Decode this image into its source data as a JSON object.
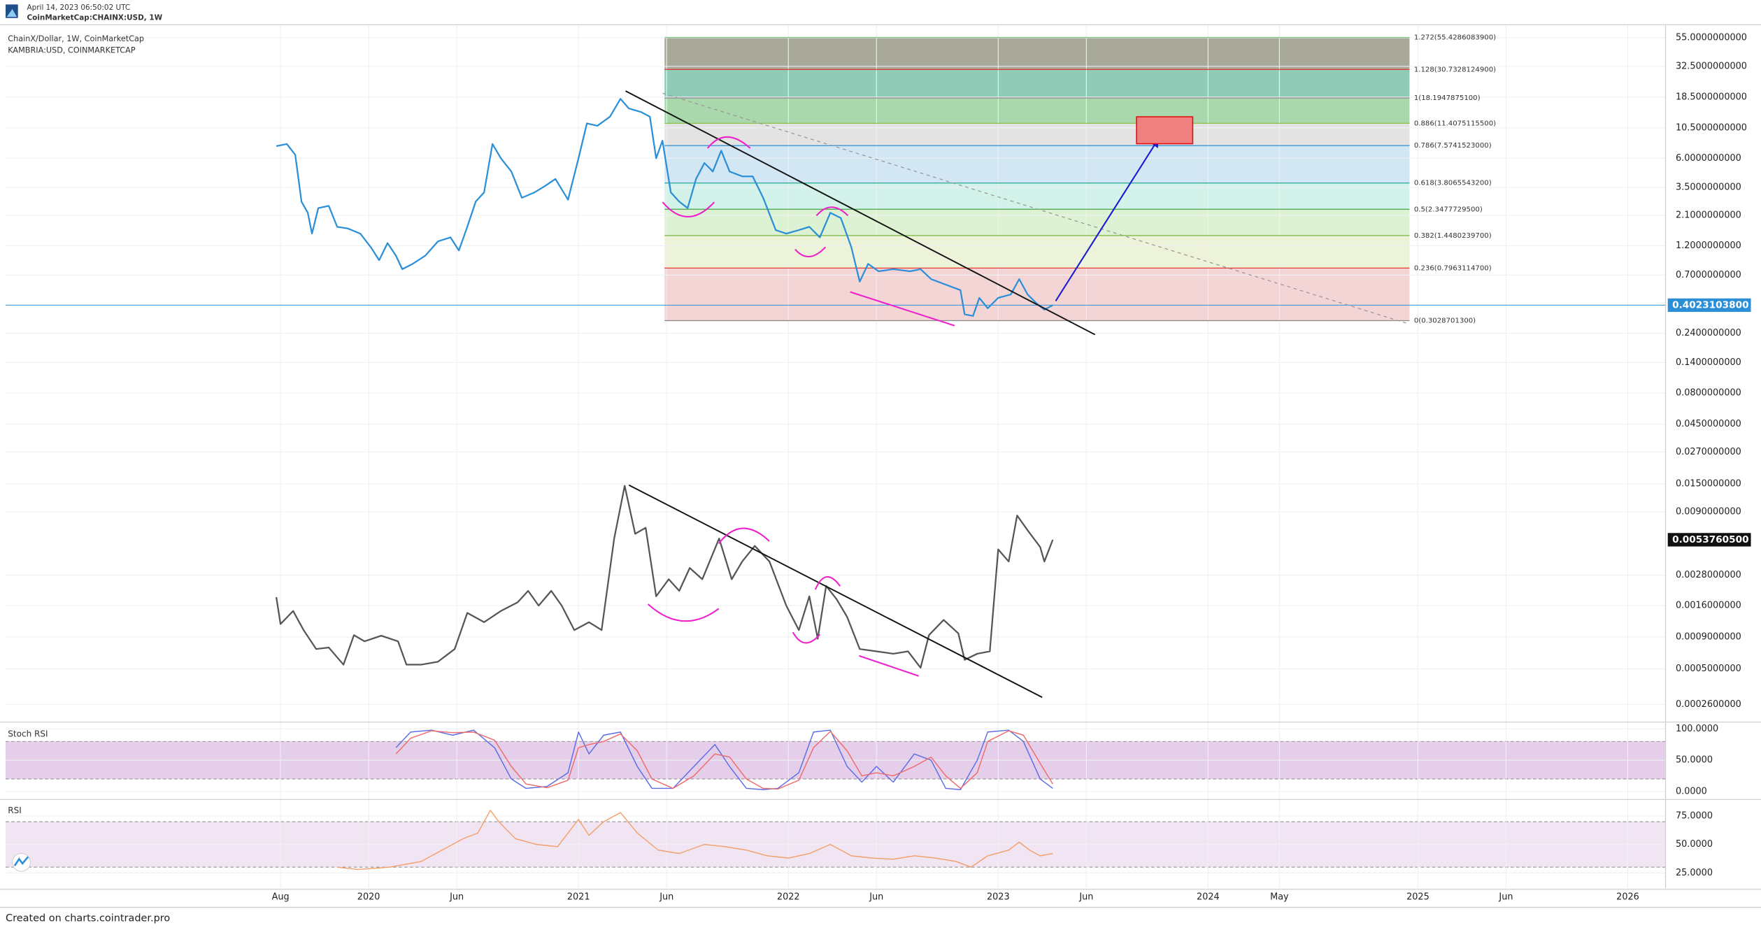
{
  "header": {
    "date": "April 14, 2023 06:50:02 UTC",
    "symbol": "CoinMarketCap:CHAINX:USD, 1W"
  },
  "footer": "Created on charts.cointrader.pro",
  "chart_data": [
    {
      "type": "line",
      "y_scale": "log",
      "grid": true,
      "xlim": [
        2018.27,
        2026.18
      ],
      "ylim": [
        0.0002,
        70
      ],
      "yticks": [
        {
          "value": 55,
          "label": "55.0000000000"
        },
        {
          "value": 32.5,
          "label": "32.5000000000"
        },
        {
          "value": 18.5,
          "label": "18.5000000000"
        },
        {
          "value": 10.5,
          "label": "10.5000000000"
        },
        {
          "value": 6,
          "label": "6.0000000000"
        },
        {
          "value": 3.5,
          "label": "3.5000000000"
        },
        {
          "value": 2.1,
          "label": "2.1000000000"
        },
        {
          "value": 1.2,
          "label": "1.2000000000"
        },
        {
          "value": 0.7,
          "label": "0.7000000000"
        },
        {
          "value": 0.24,
          "label": "0.2400000000"
        },
        {
          "value": 0.14,
          "label": "0.1400000000"
        },
        {
          "value": 0.08,
          "label": "0.0800000000"
        },
        {
          "value": 0.045,
          "label": "0.0450000000"
        },
        {
          "value": 0.027,
          "label": "0.0270000000"
        },
        {
          "value": 0.015,
          "label": "0.0150000000"
        },
        {
          "value": 0.009,
          "label": "0.0090000000"
        },
        {
          "value": 0.0028,
          "label": "0.0028000000"
        },
        {
          "value": 0.0016,
          "label": "0.0016000000"
        },
        {
          "value": 0.0009,
          "label": "0.0009000000"
        },
        {
          "value": 0.0005,
          "label": "0.0005000000"
        },
        {
          "value": 0.00026,
          "label": "0.0002600000"
        }
      ],
      "fib_x": [
        2021.41,
        2024.96
      ],
      "fib_levels": [
        {
          "value": 55.42860839,
          "label": "1.272(55.4286083900)",
          "color": "#81c784",
          "fill": "#a9a99a"
        },
        {
          "value": 30.73281249,
          "label": "1.128(30.7328124900)",
          "color": "#e53935",
          "fill": "#8fcbb6"
        },
        {
          "value": 18.19478751,
          "label": "1(18.1947875100)",
          "color": "#888888",
          "fill": "#a9d8ac"
        },
        {
          "value": 11.40751155,
          "label": "0.886(11.4075115500)",
          "color": "#8bc34a",
          "fill": "#e3e3e3"
        },
        {
          "value": 7.5741523,
          "label": "0.786(7.5741523000)",
          "color": "#2f8fd6",
          "fill": "#d3e6f4"
        },
        {
          "value": 3.80655432,
          "label": "0.618(3.8065543200)",
          "color": "#26a69a",
          "fill": "#d3f2e9"
        },
        {
          "value": 2.34777295,
          "label": "0.5(2.3477729500)",
          "color": "#43a047",
          "fill": "#dcf2d3"
        },
        {
          "value": 1.44802397,
          "label": "0.382(1.4480239700)",
          "color": "#7cb342",
          "fill": "#edf3d8"
        },
        {
          "value": 0.79631147,
          "label": "0.236(0.7963114700)",
          "color": "#e53935",
          "fill": "#f4d5d5"
        },
        {
          "value": 0.30287013,
          "label": "0(0.3028701300)",
          "color": "#888888"
        }
      ],
      "series": [
        {
          "name": "ChainX/Dollar, 1W, CoinMarketCap",
          "color": "#2b8fd8",
          "last_value_label": "0.4023103800",
          "x": [
            2019.56,
            2019.61,
            2019.65,
            2019.68,
            2019.71,
            2019.73,
            2019.76,
            2019.81,
            2019.85,
            2019.9,
            2019.96,
            2020.01,
            2020.05,
            2020.09,
            2020.13,
            2020.16,
            2020.21,
            2020.27,
            2020.33,
            2020.39,
            2020.43,
            2020.47,
            2020.51,
            2020.55,
            2020.59,
            2020.63,
            2020.68,
            2020.73,
            2020.79,
            2020.84,
            2020.89,
            2020.95,
            2021.0,
            2021.04,
            2021.09,
            2021.15,
            2021.2,
            2021.24,
            2021.3,
            2021.34,
            2021.37,
            2021.4,
            2021.44,
            2021.48,
            2021.52,
            2021.56,
            2021.6,
            2021.64,
            2021.68,
            2021.72,
            2021.78,
            2021.83,
            2021.88,
            2021.94,
            2021.99,
            2022.05,
            2022.1,
            2022.15,
            2022.2,
            2022.25,
            2022.3,
            2022.34,
            2022.38,
            2022.43,
            2022.5,
            2022.58,
            2022.63,
            2022.68,
            2022.77,
            2022.82,
            2022.84,
            2022.88,
            2022.91,
            2022.95,
            2023.0,
            2023.06,
            2023.1,
            2023.14,
            2023.18,
            2023.22,
            2023.26
          ],
          "values": [
            7.5,
            7.8,
            6.4,
            2.7,
            2.2,
            1.5,
            2.4,
            2.5,
            1.7,
            1.65,
            1.5,
            1.17,
            0.92,
            1.26,
            1.0,
            0.78,
            0.86,
            1.0,
            1.3,
            1.4,
            1.1,
            1.7,
            2.7,
            3.2,
            7.8,
            6.0,
            4.7,
            2.9,
            3.2,
            3.6,
            4.1,
            2.8,
            6.0,
            11.4,
            10.9,
            12.9,
            17.9,
            15,
            14,
            12.9,
            6.0,
            8.3,
            3.2,
            2.7,
            2.4,
            4.1,
            5.5,
            4.7,
            6.9,
            4.7,
            4.3,
            4.3,
            2.9,
            1.6,
            1.5,
            1.6,
            1.7,
            1.4,
            2.2,
            2.0,
            1.17,
            0.62,
            0.86,
            0.75,
            0.78,
            0.75,
            0.78,
            0.65,
            0.57,
            0.53,
            0.34,
            0.33,
            0.46,
            0.38,
            0.46,
            0.49,
            0.65,
            0.49,
            0.42,
            0.37,
            0.40231038
          ]
        },
        {
          "name": "KAMBRIA:USD, COINMARKETCAP",
          "color": "#555555",
          "last_value_label": "0.0053760500",
          "x": [
            2019.56,
            2019.58,
            2019.64,
            2019.69,
            2019.75,
            2019.81,
            2019.88,
            2019.93,
            2019.98,
            2020.06,
            2020.14,
            2020.18,
            2020.25,
            2020.33,
            2020.41,
            2020.47,
            2020.55,
            2020.63,
            2020.71,
            2020.76,
            2020.81,
            2020.87,
            2020.92,
            2020.98,
            2021.05,
            2021.11,
            2021.17,
            2021.22,
            2021.27,
            2021.32,
            2021.37,
            2021.43,
            2021.48,
            2021.53,
            2021.59,
            2021.67,
            2021.73,
            2021.78,
            2021.84,
            2021.91,
            2021.99,
            2022.05,
            2022.1,
            2022.14,
            2022.18,
            2022.23,
            2022.28,
            2022.34,
            2022.42,
            2022.5,
            2022.57,
            2022.63,
            2022.67,
            2022.74,
            2022.81,
            2022.84,
            2022.9,
            2022.96,
            2023.0,
            2023.05,
            2023.09,
            2023.14,
            2023.2,
            2023.22,
            2023.26
          ],
          "values": [
            0.00187,
            0.00114,
            0.00145,
            0.00102,
            0.00072,
            0.00074,
            0.00054,
            0.00093,
            0.00083,
            0.00092,
            0.00083,
            0.00054,
            0.00054,
            0.00057,
            0.00072,
            0.0014,
            0.00118,
            0.00145,
            0.0017,
            0.0021,
            0.0016,
            0.0021,
            0.0016,
            0.00102,
            0.00118,
            0.00102,
            0.0055,
            0.0145,
            0.006,
            0.0067,
            0.0019,
            0.0026,
            0.0021,
            0.0032,
            0.0026,
            0.0055,
            0.0026,
            0.0036,
            0.0048,
            0.0036,
            0.0016,
            0.00102,
            0.0019,
            0.00087,
            0.0023,
            0.0018,
            0.0013,
            0.00072,
            0.00069,
            0.00066,
            0.00069,
            0.00051,
            0.00093,
            0.00123,
            0.00096,
            0.00059,
            0.00066,
            0.00069,
            0.0045,
            0.0036,
            0.0084,
            0.0064,
            0.0047,
            0.0036,
            0.00537605
          ]
        }
      ]
    },
    {
      "type": "line",
      "title": "Stoch RSI",
      "grid": true,
      "xlim": [
        2018.27,
        2026.18
      ],
      "ylim": [
        -11,
        107.4
      ],
      "yticks": [
        {
          "value": 100,
          "label": "100.0000"
        },
        {
          "value": 50,
          "label": "50.0000"
        },
        {
          "value": 0,
          "label": "0.0000"
        }
      ],
      "band": [
        20,
        80
      ],
      "band_color": "#e1c5e6",
      "series": [
        {
          "color": "#5c6ce6",
          "x": [
            2020.13,
            2020.2,
            2020.3,
            2020.4,
            2020.5,
            2020.6,
            2020.68,
            2020.75,
            2020.85,
            2020.95,
            2021.0,
            2021.05,
            2021.12,
            2021.2,
            2021.28,
            2021.35,
            2021.45,
            2021.55,
            2021.65,
            2021.72,
            2021.8,
            2021.88,
            2021.95,
            2022.05,
            2022.12,
            2022.2,
            2022.28,
            2022.35,
            2022.42,
            2022.5,
            2022.6,
            2022.68,
            2022.75,
            2022.82,
            2022.9,
            2022.95,
            2023.05,
            2023.12,
            2023.2,
            2023.26
          ],
          "values": [
            70,
            95,
            98,
            90,
            98,
            70,
            20,
            5,
            8,
            30,
            95,
            60,
            90,
            95,
            40,
            5,
            5,
            40,
            75,
            40,
            5,
            3,
            5,
            30,
            95,
            98,
            40,
            15,
            40,
            15,
            60,
            50,
            5,
            3,
            50,
            95,
            98,
            80,
            20,
            5
          ]
        },
        {
          "color": "#ef6b6b",
          "x": [
            2020.13,
            2020.2,
            2020.3,
            2020.4,
            2020.5,
            2020.6,
            2020.68,
            2020.75,
            2020.85,
            2020.95,
            2021.0,
            2021.05,
            2021.12,
            2021.2,
            2021.28,
            2021.35,
            2021.45,
            2021.55,
            2021.65,
            2021.72,
            2021.8,
            2021.88,
            2021.95,
            2022.05,
            2022.12,
            2022.2,
            2022.28,
            2022.35,
            2022.42,
            2022.5,
            2022.6,
            2022.68,
            2022.75,
            2022.82,
            2022.9,
            2022.95,
            2023.05,
            2023.12,
            2023.2,
            2023.26
          ],
          "values": [
            60,
            85,
            97,
            94,
            95,
            82,
            40,
            12,
            6,
            18,
            70,
            75,
            80,
            92,
            65,
            20,
            5,
            25,
            60,
            55,
            20,
            5,
            4,
            18,
            70,
            96,
            65,
            25,
            30,
            25,
            40,
            55,
            25,
            5,
            30,
            80,
            97,
            90,
            45,
            12
          ]
        }
      ]
    },
    {
      "type": "line",
      "title": "RSI",
      "grid": true,
      "xlim": [
        2018.27,
        2026.18
      ],
      "ylim": [
        11.5,
        88.5
      ],
      "yticks": [
        {
          "value": 75,
          "label": "75.0000"
        },
        {
          "value": 50,
          "label": "50.0000"
        },
        {
          "value": 25,
          "label": "25.0000"
        }
      ],
      "band": [
        30,
        70
      ],
      "band_color": "#efe1f2",
      "xticks": [
        {
          "value": 2019.58,
          "label": "Aug"
        },
        2020,
        {
          "value": 2020.42,
          "label": "Jun"
        },
        2021,
        {
          "value": 2021.42,
          "label": "Jun"
        },
        2022,
        {
          "value": 2022.42,
          "label": "Jun"
        },
        2023,
        {
          "value": 2023.42,
          "label": "Jun"
        },
        2024,
        {
          "value": 2024.34,
          "label": "May"
        },
        2025,
        {
          "value": 2025.42,
          "label": "Jun"
        },
        2026
      ],
      "series": [
        {
          "color": "#f3a06c",
          "x": [
            2019.85,
            2019.95,
            2020.1,
            2020.25,
            2020.35,
            2020.45,
            2020.52,
            2020.58,
            2020.62,
            2020.7,
            2020.8,
            2020.9,
            2021.0,
            2021.05,
            2021.12,
            2021.2,
            2021.28,
            2021.38,
            2021.48,
            2021.6,
            2021.7,
            2021.8,
            2021.9,
            2022.0,
            2022.1,
            2022.2,
            2022.3,
            2022.4,
            2022.5,
            2022.6,
            2022.7,
            2022.8,
            2022.87,
            2022.95,
            2023.05,
            2023.1,
            2023.15,
            2023.2,
            2023.26
          ],
          "values": [
            30,
            28,
            30,
            35,
            45,
            55,
            60,
            80,
            70,
            55,
            50,
            48,
            72,
            58,
            70,
            78,
            60,
            45,
            42,
            50,
            48,
            45,
            40,
            38,
            42,
            50,
            40,
            38,
            37,
            40,
            38,
            35,
            30,
            40,
            45,
            52,
            45,
            40,
            42
          ]
        }
      ]
    }
  ]
}
